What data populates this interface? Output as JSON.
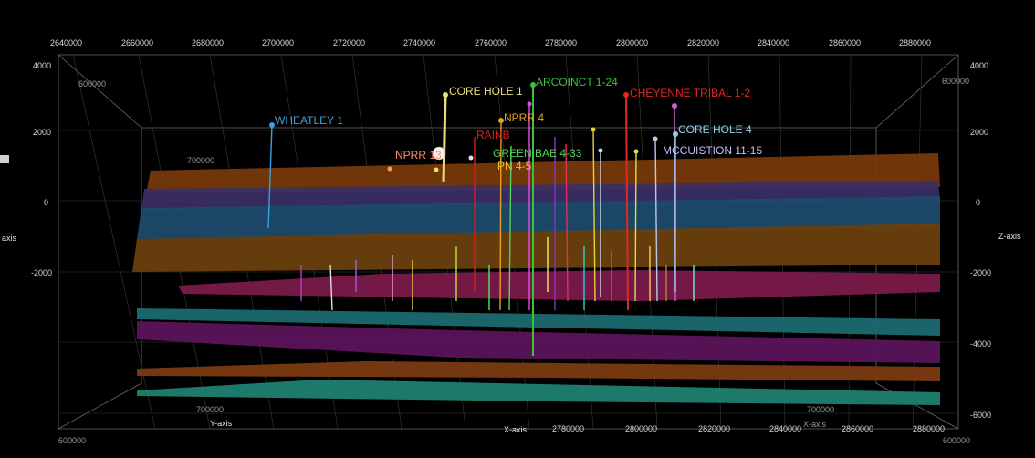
{
  "viewer": {
    "top_x_ticks": [
      "2640000",
      "2660000",
      "2680000",
      "2700000",
      "2720000",
      "2740000",
      "2760000",
      "2780000",
      "2800000",
      "2820000",
      "2840000",
      "2860000",
      "2880000"
    ],
    "bottom_x_ticks": [
      "2780000",
      "2800000",
      "2820000",
      "2840000",
      "2860000",
      "2880000"
    ],
    "left_z_ticks": [
      "4000",
      "2000",
      "0",
      "-2000"
    ],
    "right_z_ticks": [
      "4000",
      "2000",
      "0",
      "-2000",
      "-4000",
      "-6000"
    ],
    "y_ticks": {
      "left_600000": "600000",
      "left_700000": "700000",
      "right_600000": "600000",
      "bottom_left_600000": "600000",
      "bottom_left_700000": "700000",
      "bottom_right_700000": "700000",
      "bottom_right_600000": "600000"
    },
    "axis_labels": {
      "x": "X-axis",
      "y": "Y-axis",
      "z_right": "Z-axis",
      "z_left": "axis",
      "x_right_small": "X-axis"
    },
    "wells": [
      {
        "name": "WHEATLEY 1",
        "color": "#3fa0e0"
      },
      {
        "name": "CORE HOLE 1",
        "color": "#e6e07a"
      },
      {
        "name": "ARCOINCT 1-24",
        "color": "#39c43a"
      },
      {
        "name": "CHEYENNE TRIBAL 1-2",
        "color": "#e0282a"
      },
      {
        "name": "NPRR 4",
        "color": "#e8a020"
      },
      {
        "name": "CORE HOLE 4",
        "color": "#8fd0e8"
      },
      {
        "name": "NPRR 13",
        "color": "#ff8a6a"
      },
      {
        "name": "RAINB",
        "color": "#d02020"
      },
      {
        "name": "GREEN BAE 4-33",
        "color": "#58d060"
      },
      {
        "name": "MCCUISTION 11-15",
        "color": "#c0c0ff"
      },
      {
        "name": "PN 4-5",
        "color": "#e8c040"
      }
    ],
    "surface_colors": [
      "#7a3a0a",
      "#3a2f66",
      "#1c4a6a",
      "#6a3f0c",
      "#7a1a4a",
      "#1a6a70",
      "#5a145a",
      "#7a3a10",
      "#1f8070"
    ]
  }
}
